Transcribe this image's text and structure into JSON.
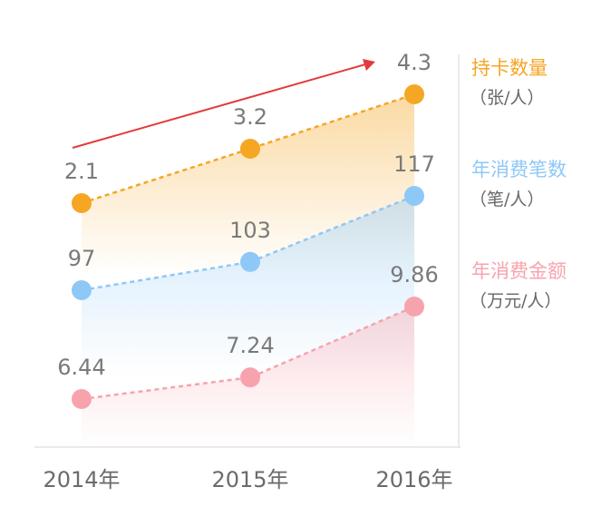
{
  "chart_data": {
    "type": "line",
    "categories": [
      "2014年",
      "2015年",
      "2016年"
    ],
    "series": [
      {
        "name": "持卡数量",
        "unit": "（张/人）",
        "values": [
          2.1,
          3.2,
          4.3
        ],
        "value_labels": [
          "2.1",
          "3.2",
          "4.3"
        ],
        "color": "#f5a623"
      },
      {
        "name": "年消费笔数",
        "unit": "（笔/人）",
        "values": [
          97,
          103,
          117
        ],
        "value_labels": [
          "97",
          "103",
          "117"
        ],
        "color": "#8ec8f7"
      },
      {
        "name": "年消费金额",
        "unit": "（万元/人）",
        "values": [
          6.44,
          7.24,
          9.86
        ],
        "value_labels": [
          "6.44",
          "7.24",
          "9.86"
        ],
        "color": "#f7a3ad"
      }
    ],
    "legend_position": "right",
    "grid": false,
    "trend_arrow_color": "#e23b3b"
  }
}
